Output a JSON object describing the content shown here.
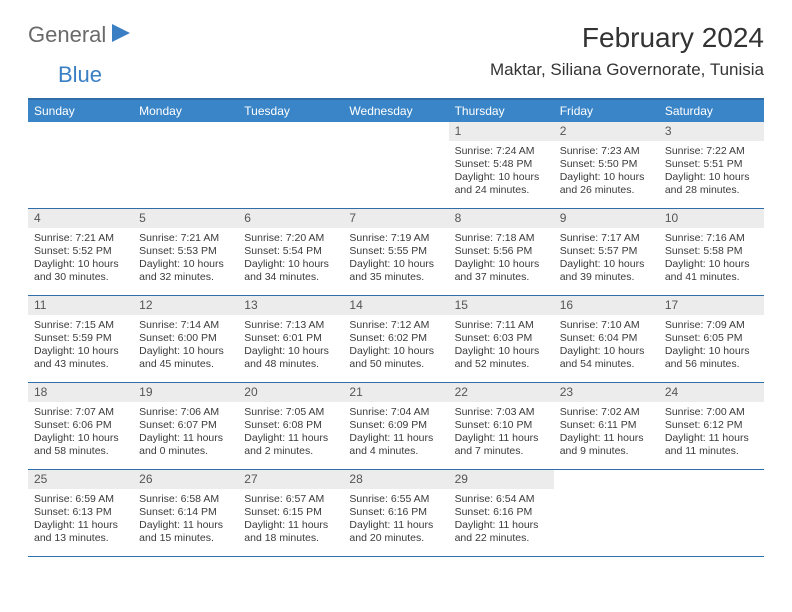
{
  "logo": {
    "part1": "General",
    "part2": "Blue"
  },
  "header": {
    "month_title": "February 2024",
    "location": "Maktar, Siliana Governorate, Tunisia"
  },
  "colors": {
    "header_bar": "#3a85c7",
    "rule": "#2f6ea8",
    "daynum_bg": "#ececec"
  },
  "dow": [
    "Sunday",
    "Monday",
    "Tuesday",
    "Wednesday",
    "Thursday",
    "Friday",
    "Saturday"
  ],
  "weeks": [
    [
      {
        "n": "",
        "empty": true
      },
      {
        "n": "",
        "empty": true
      },
      {
        "n": "",
        "empty": true
      },
      {
        "n": "",
        "empty": true
      },
      {
        "n": "1",
        "sr": "Sunrise: 7:24 AM",
        "ss": "Sunset: 5:48 PM",
        "d1": "Daylight: 10 hours",
        "d2": "and 24 minutes."
      },
      {
        "n": "2",
        "sr": "Sunrise: 7:23 AM",
        "ss": "Sunset: 5:50 PM",
        "d1": "Daylight: 10 hours",
        "d2": "and 26 minutes."
      },
      {
        "n": "3",
        "sr": "Sunrise: 7:22 AM",
        "ss": "Sunset: 5:51 PM",
        "d1": "Daylight: 10 hours",
        "d2": "and 28 minutes."
      }
    ],
    [
      {
        "n": "4",
        "sr": "Sunrise: 7:21 AM",
        "ss": "Sunset: 5:52 PM",
        "d1": "Daylight: 10 hours",
        "d2": "and 30 minutes."
      },
      {
        "n": "5",
        "sr": "Sunrise: 7:21 AM",
        "ss": "Sunset: 5:53 PM",
        "d1": "Daylight: 10 hours",
        "d2": "and 32 minutes."
      },
      {
        "n": "6",
        "sr": "Sunrise: 7:20 AM",
        "ss": "Sunset: 5:54 PM",
        "d1": "Daylight: 10 hours",
        "d2": "and 34 minutes."
      },
      {
        "n": "7",
        "sr": "Sunrise: 7:19 AM",
        "ss": "Sunset: 5:55 PM",
        "d1": "Daylight: 10 hours",
        "d2": "and 35 minutes."
      },
      {
        "n": "8",
        "sr": "Sunrise: 7:18 AM",
        "ss": "Sunset: 5:56 PM",
        "d1": "Daylight: 10 hours",
        "d2": "and 37 minutes."
      },
      {
        "n": "9",
        "sr": "Sunrise: 7:17 AM",
        "ss": "Sunset: 5:57 PM",
        "d1": "Daylight: 10 hours",
        "d2": "and 39 minutes."
      },
      {
        "n": "10",
        "sr": "Sunrise: 7:16 AM",
        "ss": "Sunset: 5:58 PM",
        "d1": "Daylight: 10 hours",
        "d2": "and 41 minutes."
      }
    ],
    [
      {
        "n": "11",
        "sr": "Sunrise: 7:15 AM",
        "ss": "Sunset: 5:59 PM",
        "d1": "Daylight: 10 hours",
        "d2": "and 43 minutes."
      },
      {
        "n": "12",
        "sr": "Sunrise: 7:14 AM",
        "ss": "Sunset: 6:00 PM",
        "d1": "Daylight: 10 hours",
        "d2": "and 45 minutes."
      },
      {
        "n": "13",
        "sr": "Sunrise: 7:13 AM",
        "ss": "Sunset: 6:01 PM",
        "d1": "Daylight: 10 hours",
        "d2": "and 48 minutes."
      },
      {
        "n": "14",
        "sr": "Sunrise: 7:12 AM",
        "ss": "Sunset: 6:02 PM",
        "d1": "Daylight: 10 hours",
        "d2": "and 50 minutes."
      },
      {
        "n": "15",
        "sr": "Sunrise: 7:11 AM",
        "ss": "Sunset: 6:03 PM",
        "d1": "Daylight: 10 hours",
        "d2": "and 52 minutes."
      },
      {
        "n": "16",
        "sr": "Sunrise: 7:10 AM",
        "ss": "Sunset: 6:04 PM",
        "d1": "Daylight: 10 hours",
        "d2": "and 54 minutes."
      },
      {
        "n": "17",
        "sr": "Sunrise: 7:09 AM",
        "ss": "Sunset: 6:05 PM",
        "d1": "Daylight: 10 hours",
        "d2": "and 56 minutes."
      }
    ],
    [
      {
        "n": "18",
        "sr": "Sunrise: 7:07 AM",
        "ss": "Sunset: 6:06 PM",
        "d1": "Daylight: 10 hours",
        "d2": "and 58 minutes."
      },
      {
        "n": "19",
        "sr": "Sunrise: 7:06 AM",
        "ss": "Sunset: 6:07 PM",
        "d1": "Daylight: 11 hours",
        "d2": "and 0 minutes."
      },
      {
        "n": "20",
        "sr": "Sunrise: 7:05 AM",
        "ss": "Sunset: 6:08 PM",
        "d1": "Daylight: 11 hours",
        "d2": "and 2 minutes."
      },
      {
        "n": "21",
        "sr": "Sunrise: 7:04 AM",
        "ss": "Sunset: 6:09 PM",
        "d1": "Daylight: 11 hours",
        "d2": "and 4 minutes."
      },
      {
        "n": "22",
        "sr": "Sunrise: 7:03 AM",
        "ss": "Sunset: 6:10 PM",
        "d1": "Daylight: 11 hours",
        "d2": "and 7 minutes."
      },
      {
        "n": "23",
        "sr": "Sunrise: 7:02 AM",
        "ss": "Sunset: 6:11 PM",
        "d1": "Daylight: 11 hours",
        "d2": "and 9 minutes."
      },
      {
        "n": "24",
        "sr": "Sunrise: 7:00 AM",
        "ss": "Sunset: 6:12 PM",
        "d1": "Daylight: 11 hours",
        "d2": "and 11 minutes."
      }
    ],
    [
      {
        "n": "25",
        "sr": "Sunrise: 6:59 AM",
        "ss": "Sunset: 6:13 PM",
        "d1": "Daylight: 11 hours",
        "d2": "and 13 minutes."
      },
      {
        "n": "26",
        "sr": "Sunrise: 6:58 AM",
        "ss": "Sunset: 6:14 PM",
        "d1": "Daylight: 11 hours",
        "d2": "and 15 minutes."
      },
      {
        "n": "27",
        "sr": "Sunrise: 6:57 AM",
        "ss": "Sunset: 6:15 PM",
        "d1": "Daylight: 11 hours",
        "d2": "and 18 minutes."
      },
      {
        "n": "28",
        "sr": "Sunrise: 6:55 AM",
        "ss": "Sunset: 6:16 PM",
        "d1": "Daylight: 11 hours",
        "d2": "and 20 minutes."
      },
      {
        "n": "29",
        "sr": "Sunrise: 6:54 AM",
        "ss": "Sunset: 6:16 PM",
        "d1": "Daylight: 11 hours",
        "d2": "and 22 minutes."
      },
      {
        "n": "",
        "empty": true
      },
      {
        "n": "",
        "empty": true
      }
    ]
  ]
}
